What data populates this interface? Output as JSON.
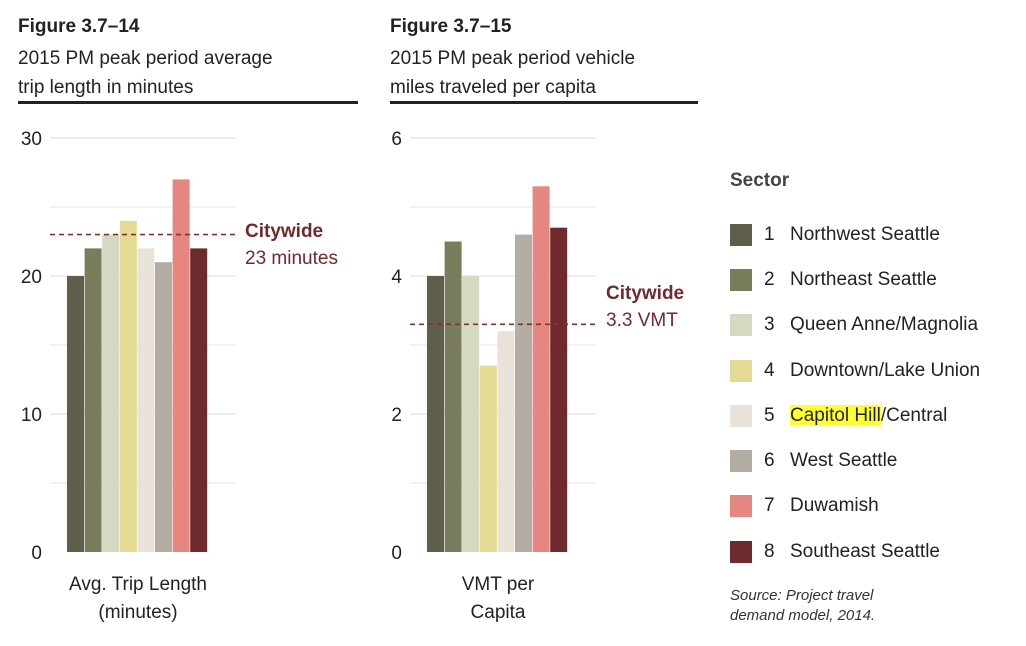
{
  "figures": {
    "left": {
      "number": "Figure 3.7–14",
      "subtitle_line1": "2015 PM peak period average",
      "subtitle_line2": "trip length in minutes"
    },
    "right": {
      "number": "Figure 3.7–15",
      "subtitle_line1": "2015 PM peak period vehicle",
      "subtitle_line2": "miles traveled per capita"
    }
  },
  "legend": {
    "title": "Sector",
    "items": [
      {
        "num": "1",
        "pre": "",
        "highlight": "",
        "post": "Northwest Seattle",
        "color": "#5e5e4b"
      },
      {
        "num": "2",
        "pre": "",
        "highlight": "",
        "post": "Northeast Seattle",
        "color": "#7a7d5c"
      },
      {
        "num": "3",
        "pre": "",
        "highlight": "",
        "post": "Queen Anne/Magnolia",
        "color": "#d5d9c1"
      },
      {
        "num": "4",
        "pre": "",
        "highlight": "",
        "post": "Downtown/Lake Union",
        "color": "#e3db94"
      },
      {
        "num": "5",
        "pre": "",
        "highlight": "Capitol Hill",
        "post": "/Central",
        "color": "#e9e2d9"
      },
      {
        "num": "6",
        "pre": "",
        "highlight": "",
        "post": "West Seattle",
        "color": "#b3ada4"
      },
      {
        "num": "7",
        "pre": "",
        "highlight": "",
        "post": "Duwamish",
        "color": "#e58780"
      },
      {
        "num": "8",
        "pre": "",
        "highlight": "",
        "post": "Southeast Seattle",
        "color": "#6e2a2c"
      }
    ]
  },
  "source": {
    "line1": "Source: Project travel",
    "line2": "demand model, 2014."
  },
  "chart_data": [
    {
      "type": "bar",
      "categories": [
        "1",
        "2",
        "3",
        "4",
        "5",
        "6",
        "7",
        "8"
      ],
      "values": [
        20,
        22,
        23,
        24,
        22,
        21,
        27,
        22
      ],
      "ylim": [
        0,
        30
      ],
      "yticks": [
        "0",
        "10",
        "20",
        "30"
      ],
      "ytick_values": [
        0,
        10,
        20,
        30
      ],
      "xlabel_line1": "Avg. Trip Length",
      "xlabel_line2": "(minutes)",
      "reference": {
        "value": 23,
        "label1": "Citywide",
        "label2": "23 minutes"
      },
      "grid": true
    },
    {
      "type": "bar",
      "categories": [
        "1",
        "2",
        "3",
        "4",
        "5",
        "6",
        "7",
        "8"
      ],
      "values": [
        4.0,
        4.5,
        4.0,
        2.7,
        3.2,
        4.6,
        5.3,
        4.7
      ],
      "ylim": [
        0,
        6
      ],
      "yticks": [
        "0",
        "2",
        "4",
        "6"
      ],
      "ytick_values": [
        0,
        2,
        4,
        6
      ],
      "xlabel_line1": "VMT per",
      "xlabel_line2": "Capita",
      "reference": {
        "value": 3.3,
        "label1": "Citywide",
        "label2": "3.3 VMT"
      },
      "grid": true
    }
  ]
}
